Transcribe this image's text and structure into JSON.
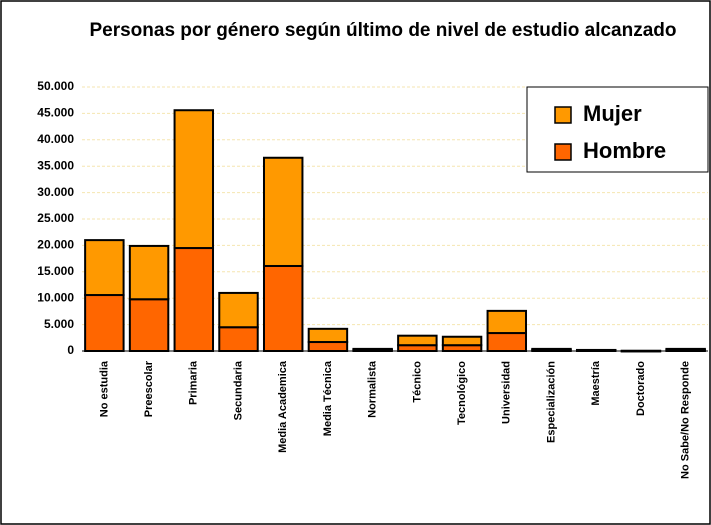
{
  "chart_data": {
    "type": "stacked_bar",
    "title": "Personas por género según último de nivel de estudio alcanzado",
    "categories": [
      "No estudia",
      "Preescolar",
      "Primaria",
      "Secundaria",
      "Media Academica",
      "Media Técnica",
      "Normalista",
      "Técnico",
      "Tecnológico",
      "Universidad",
      "Especialización",
      "Maestría",
      "Doctorado",
      "No Sabe/No Responde"
    ],
    "series": [
      {
        "name": "Hombre",
        "color": "#ff6600",
        "values": [
          10600,
          9800,
          19500,
          4500,
          16100,
          1700,
          200,
          1100,
          1100,
          3400,
          200,
          100,
          20,
          200
        ]
      },
      {
        "name": "Mujer",
        "color": "#ff9900",
        "values": [
          10400,
          10100,
          26100,
          6500,
          20500,
          2500,
          200,
          1800,
          1600,
          4200,
          200,
          100,
          20,
          200
        ]
      }
    ],
    "ylim": [
      0,
      50000
    ],
    "yticks": [
      0,
      {
        "value": 5000,
        "label": "5.000"
      },
      {
        "value": 10000,
        "label": "10.000"
      },
      {
        "value": 15000,
        "label": "15.000"
      },
      {
        "value": 20000,
        "label": "20.000"
      },
      {
        "value": 25000,
        "label": "25.000"
      },
      {
        "value": 30000,
        "label": "30.000"
      },
      {
        "value": 35000,
        "label": "35.000"
      },
      {
        "value": 40000,
        "label": "40.000"
      },
      {
        "value": 45000,
        "label": "45.000"
      },
      {
        "value": 50000,
        "label": "50.000"
      }
    ],
    "grid": true,
    "legend": "top-right"
  }
}
